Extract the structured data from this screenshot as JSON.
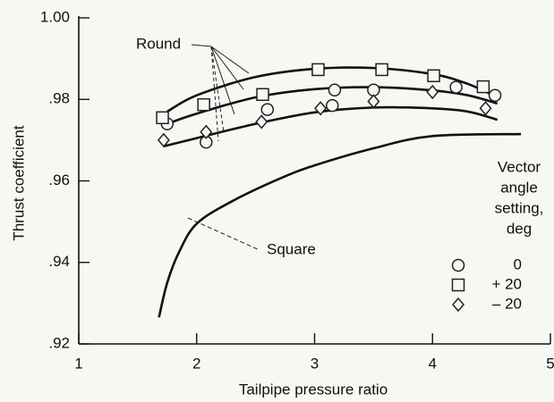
{
  "chart_data": {
    "type": "scatter",
    "xlabel": "Tailpipe pressure ratio",
    "ylabel": "Thrust coefficient",
    "xlim": [
      1,
      5
    ],
    "xticks": [
      1,
      2,
      3,
      4,
      5
    ],
    "ylim": [
      0.92,
      1.0
    ],
    "yticks": [
      {
        "value": 0.92,
        "label": ".92"
      },
      {
        "value": 0.94,
        "label": ".94"
      },
      {
        "value": 0.96,
        "label": ".96"
      },
      {
        "value": 0.98,
        "label": ".98"
      },
      {
        "value": 1.0,
        "label": "1.00"
      }
    ],
    "legend_title": [
      "Vector",
      "angle",
      "setting,",
      "deg"
    ],
    "series": [
      {
        "name": "0",
        "marker": "circle",
        "color": "#222222",
        "x": [
          1.75,
          2.08,
          2.6,
          3.15,
          3.17,
          3.5,
          4.2,
          4.53
        ],
        "values": [
          0.974,
          0.9695,
          0.9775,
          0.9785,
          0.9823,
          0.9823,
          0.983,
          0.981
        ]
      },
      {
        "name": "+ 20",
        "marker": "square",
        "color": "#222222",
        "x": [
          1.71,
          2.06,
          2.56,
          3.03,
          3.57,
          4.01,
          4.43
        ],
        "values": [
          0.9755,
          0.9787,
          0.9812,
          0.9873,
          0.9873,
          0.9858,
          0.9831
        ]
      },
      {
        "name": "– 20",
        "marker": "diamond",
        "color": "#222222",
        "x": [
          1.72,
          2.08,
          2.55,
          3.05,
          3.5,
          4.0,
          4.45
        ],
        "values": [
          0.97,
          0.972,
          0.9745,
          0.9778,
          0.9795,
          0.9818,
          0.9778
        ]
      }
    ],
    "curves": [
      {
        "x": [
          1.75,
          2.0,
          2.5,
          3.0,
          3.5,
          4.0,
          4.3,
          4.55
        ],
        "values": [
          0.977,
          0.981,
          0.9855,
          0.9875,
          0.9877,
          0.9862,
          0.9838,
          0.9805
        ]
      },
      {
        "x": [
          1.75,
          2.0,
          2.5,
          3.0,
          3.5,
          4.0,
          4.3,
          4.55
        ],
        "values": [
          0.974,
          0.9765,
          0.9805,
          0.9825,
          0.983,
          0.9822,
          0.981,
          0.979
        ]
      },
      {
        "x": [
          1.72,
          2.0,
          2.5,
          3.0,
          3.5,
          4.0,
          4.3,
          4.55
        ],
        "values": [
          0.9685,
          0.9705,
          0.974,
          0.9768,
          0.978,
          0.9778,
          0.977,
          0.975
        ]
      },
      {
        "x": [
          1.68,
          1.75,
          1.85,
          2.0,
          2.3,
          2.7,
          3.0,
          3.5,
          4.0,
          4.75
        ],
        "values": [
          0.9265,
          0.935,
          0.9425,
          0.9495,
          0.955,
          0.9605,
          0.9638,
          0.968,
          0.971,
          0.9715
        ]
      }
    ],
    "annotations": [
      "Round",
      "Square"
    ]
  }
}
